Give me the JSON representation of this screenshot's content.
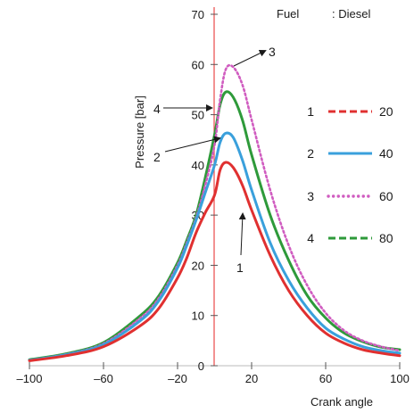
{
  "chart_data": {
    "type": "line",
    "title": "",
    "xlabel": "Crank angle",
    "ylabel": "Pressure [bar]",
    "xlim": [
      -100,
      100
    ],
    "ylim": [
      0,
      70
    ],
    "x_ticks": [
      -100,
      -60,
      -20,
      20,
      60,
      100
    ],
    "y_ticks": [
      0,
      10,
      20,
      30,
      40,
      50,
      60,
      70
    ],
    "x_tick_labels": [
      "–100",
      "–60",
      "–20",
      "20",
      "60",
      "100"
    ],
    "y_tick_labels": [
      "0",
      "10",
      "20",
      "30",
      "40",
      "50",
      "60",
      "70"
    ],
    "reference_line_x": 0,
    "grid": false,
    "fuel_label": "Fuel",
    "fuel_value": ": Diesel",
    "x": [
      -100,
      -80,
      -60,
      -40,
      -30,
      -20,
      -15,
      -10,
      -5,
      0,
      3,
      6,
      10,
      15,
      20,
      30,
      40,
      50,
      60,
      70,
      80,
      90,
      100
    ],
    "series": [
      {
        "key": "1",
        "label": "20",
        "color": "#e03030",
        "dash": "dashed",
        "values": [
          1.0,
          2.0,
          3.8,
          8.0,
          11.5,
          17.5,
          21.5,
          26.5,
          30.5,
          34.0,
          39.0,
          40.5,
          39.5,
          36.0,
          31.0,
          22.0,
          15.0,
          10.0,
          6.5,
          4.5,
          3.2,
          2.5,
          2.0
        ]
      },
      {
        "key": "2",
        "label": "40",
        "color": "#3aa0dc",
        "dash": "solid",
        "values": [
          1.1,
          2.2,
          4.2,
          9.0,
          13.0,
          19.5,
          24.0,
          29.0,
          34.5,
          40.0,
          44.5,
          46.3,
          45.5,
          41.0,
          35.0,
          24.5,
          17.0,
          11.5,
          7.5,
          5.3,
          3.8,
          3.0,
          2.5
        ]
      },
      {
        "key": "3",
        "label": "60",
        "color": "#d05cc0",
        "dash": "dotted",
        "values": [
          1.1,
          2.3,
          4.4,
          9.5,
          13.5,
          20.0,
          24.5,
          29.5,
          36.0,
          44.0,
          53.0,
          59.0,
          59.5,
          56.0,
          49.0,
          35.0,
          24.0,
          16.0,
          10.5,
          7.0,
          5.0,
          3.8,
          3.0
        ]
      },
      {
        "key": "4",
        "label": "80",
        "color": "#2e9a3a",
        "dash": "dashed",
        "values": [
          1.2,
          2.4,
          4.6,
          10.0,
          14.0,
          20.5,
          25.0,
          30.0,
          37.5,
          46.0,
          52.0,
          54.5,
          53.5,
          49.0,
          42.0,
          30.0,
          21.0,
          14.0,
          9.5,
          6.5,
          4.8,
          3.7,
          3.2
        ]
      }
    ],
    "annotations": [
      {
        "text": "1",
        "target_series": "1"
      },
      {
        "text": "2",
        "target_series": "2"
      },
      {
        "text": "3",
        "target_series": "3"
      },
      {
        "text": "4",
        "target_series": "4"
      }
    ]
  }
}
